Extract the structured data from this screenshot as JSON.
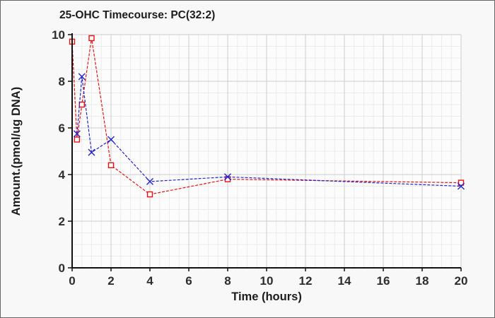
{
  "window": {
    "background": "#f8f8f8",
    "border_color": "#666666",
    "plot_background": "#fcfcfc"
  },
  "chart_data": {
    "type": "line",
    "title": "25-OHC Timecourse: PC(32:2)",
    "xlabel": "Time (hours)",
    "ylabel": "Amount.(pmol/ug DNA)",
    "xlim": [
      0,
      20
    ],
    "ylim": [
      0,
      10
    ],
    "x_major_ticks": [
      0,
      2,
      4,
      6,
      8,
      10,
      12,
      14,
      16,
      18,
      20
    ],
    "y_major_ticks": [
      0,
      2,
      4,
      6,
      8,
      10
    ],
    "minor_grid_step": 0.5,
    "grid": true,
    "legend_position": "none",
    "colors": {
      "axis": "#111111",
      "major_grid": "#cccccc",
      "minor_grid": "#ececec"
    },
    "series": [
      {
        "name": "red-series",
        "color": "#e81111",
        "marker": "open-square",
        "line_style": "dashed",
        "points": [
          [
            0,
            9.7
          ],
          [
            0.25,
            5.5
          ],
          [
            0.5,
            7.0
          ],
          [
            1,
            9.85
          ],
          [
            2,
            4.4
          ],
          [
            4,
            3.15
          ],
          [
            8,
            3.8
          ],
          [
            20,
            3.65
          ]
        ]
      },
      {
        "name": "blue-series",
        "color": "#2323c8",
        "marker": "x",
        "line_style": "dashed",
        "points": [
          [
            0.25,
            5.75
          ],
          [
            0.5,
            8.2
          ],
          [
            1,
            4.95
          ],
          [
            2,
            5.5
          ],
          [
            4,
            3.7
          ],
          [
            8,
            3.9
          ],
          [
            20,
            3.5
          ]
        ]
      }
    ]
  }
}
